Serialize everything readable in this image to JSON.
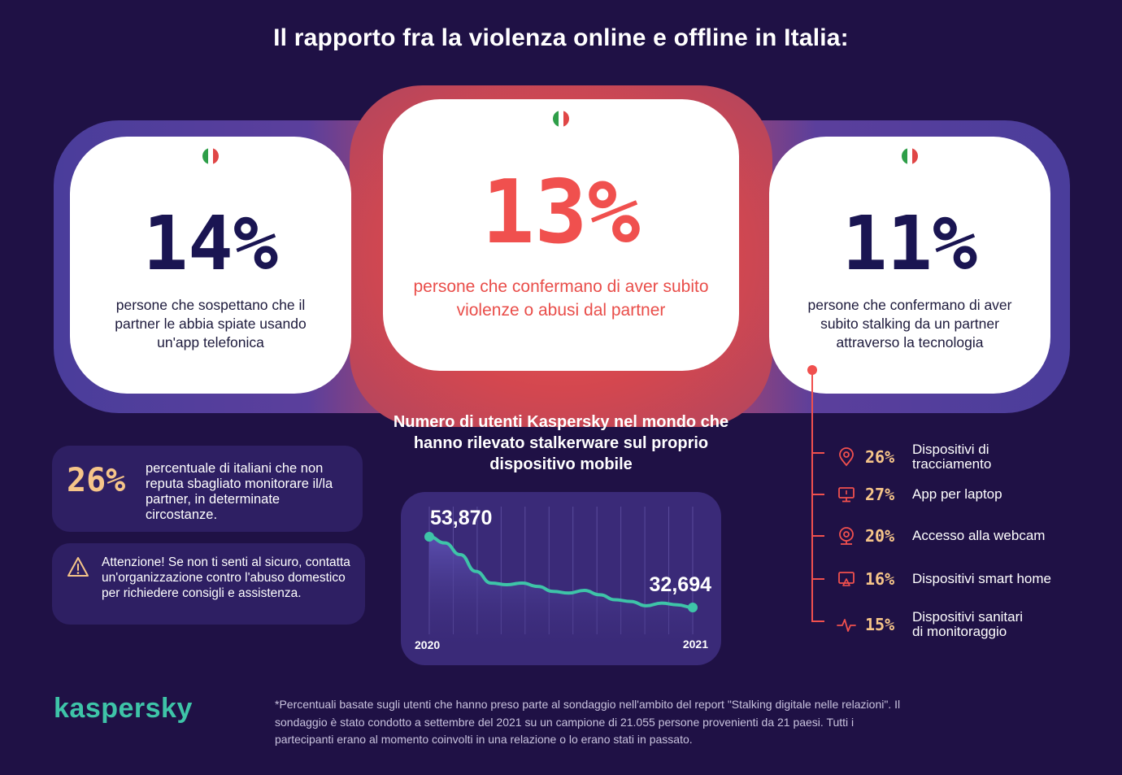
{
  "title": "Il rapporto fra la violenza online e offline in Italia:",
  "colors": {
    "background": "#1f1145",
    "accent_red": "#f0504e",
    "accent_orange": "#f6c589",
    "accent_teal": "#3ec4a8",
    "navy_text": "#1a1552"
  },
  "cards": {
    "left": {
      "flag_icon": "italy-flag-icon",
      "value": "14%",
      "desc": "persone che sospettano che il partner le abbia spiate usando un'app telefonica"
    },
    "center": {
      "flag_icon": "italy-flag-icon",
      "value": "13%",
      "desc": "persone che confermano di aver subito violenze o abusi dal partner"
    },
    "right": {
      "flag_icon": "italy-flag-icon",
      "value": "11%",
      "desc": "persone che confermano di aver subito stalking da un partner attraverso la tecnologia"
    }
  },
  "stat_box": {
    "value": "26%",
    "text": "percentuale di italiani che non reputa sbagliato monitorare il/la partner, in determinate circostanze."
  },
  "warning_box": {
    "icon": "warning-icon",
    "text": "Attenzione! Se non ti senti al sicuro, contatta un'organizzazione contro l'abuso domestico per richiedere consigli e assistenza."
  },
  "chart_data": {
    "type": "area",
    "title": "Numero di utenti Kaspersky nel mondo che hanno rilevato stalkerware sul proprio dispositivo mobile",
    "x_start_label": "2020",
    "x_end_label": "2021",
    "start_value_label": "53,870",
    "end_value_label": "32,694",
    "series": [
      {
        "values": [
          53870,
          52000,
          48500,
          43500,
          40000,
          39500,
          40000,
          39000,
          37500,
          37000,
          37800,
          36500,
          35000,
          34500,
          33200,
          34000,
          33500,
          32694
        ]
      }
    ]
  },
  "features": {
    "items": [
      {
        "icon": "location-pin-icon",
        "value": "26%",
        "label": "Dispositivi di tracciamento"
      },
      {
        "icon": "laptop-icon",
        "value": "27%",
        "label": "App per laptop"
      },
      {
        "icon": "webcam-icon",
        "value": "20%",
        "label": "Accesso alla webcam"
      },
      {
        "icon": "smart-home-icon",
        "value": "16%",
        "label": "Dispositivi smart home"
      },
      {
        "icon": "heartbeat-icon",
        "value": "15%",
        "label": "Dispositivi sanitari di monitoraggio"
      }
    ]
  },
  "logo": "kaspersky",
  "footnote": "*Percentuali basate sugli utenti che hanno preso parte al sondaggio nell'ambito del report \"Stalking digitale nelle relazioni\". Il sondaggio è stato condotto a settembre del 2021 su un campione di 21.055 persone provenienti da 21 paesi. Tutti i partecipanti erano al momento coinvolti in una relazione o lo erano stati in passato."
}
